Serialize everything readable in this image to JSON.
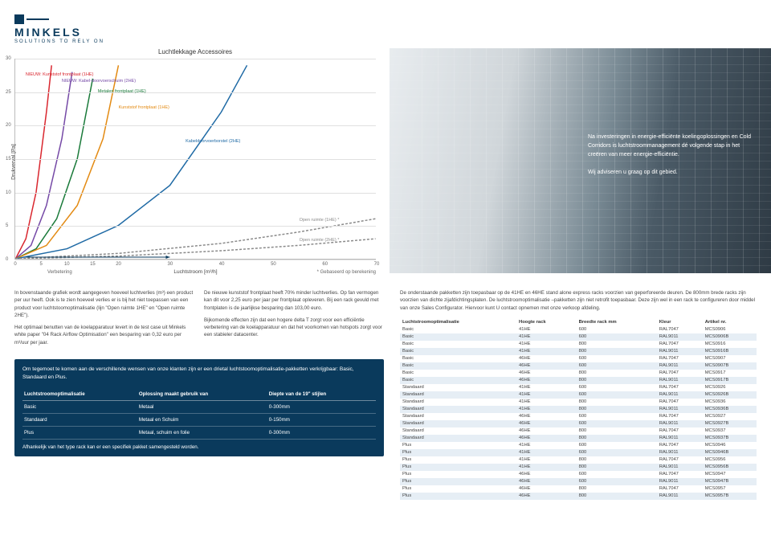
{
  "brand": {
    "name": "MINKELS",
    "tagline": "SOLUTIONS TO RELY ON"
  },
  "chart": {
    "title": "Luchtlekkage Accessoires",
    "y_title": "Drukverval [Pa]",
    "x_title": "Luchtstroom [m³/h]",
    "foot_left": "Verbetering",
    "foot_right": "* Gebaseerd op berekening",
    "xlim": [
      0,
      70
    ],
    "ylim": [
      0,
      30
    ],
    "yticks": [
      0,
      5,
      10,
      15,
      20,
      25,
      30
    ],
    "xticks": [
      0,
      5,
      10,
      15,
      20,
      30,
      40,
      50,
      60,
      70
    ],
    "grid_color": "#e0e0e0",
    "series": [
      {
        "label": "NIEUW: Kunststof frontplaat (1HE)",
        "color": "#d9262e",
        "lx": 2,
        "ly": 28,
        "pts": [
          [
            0,
            0
          ],
          [
            2,
            3
          ],
          [
            4,
            10
          ],
          [
            6,
            22
          ],
          [
            7,
            29
          ]
        ]
      },
      {
        "label": "NIEUW: Kabel-doorvoerschuim (2HE)",
        "color": "#7549a6",
        "lx": 9,
        "ly": 27,
        "pts": [
          [
            0,
            0
          ],
          [
            3,
            2
          ],
          [
            6,
            8
          ],
          [
            9,
            18
          ],
          [
            11,
            28
          ]
        ]
      },
      {
        "label": "Metalen frontplaat (1HE)",
        "color": "#1a7a3a",
        "lx": 16,
        "ly": 25.5,
        "pts": [
          [
            0,
            0
          ],
          [
            4,
            1.5
          ],
          [
            8,
            6
          ],
          [
            12,
            15
          ],
          [
            15,
            27
          ]
        ]
      },
      {
        "label": "Kunststof frontplaat (1HE)",
        "color": "#e38a12",
        "lx": 20,
        "ly": 23,
        "pts": [
          [
            0,
            0
          ],
          [
            6,
            2
          ],
          [
            12,
            8
          ],
          [
            17,
            18
          ],
          [
            20,
            29
          ]
        ]
      },
      {
        "label": "Kabeldoorvoerborstel (2HE)",
        "color": "#1f6aa5",
        "lx": 33,
        "ly": 18,
        "pts": [
          [
            0,
            0
          ],
          [
            10,
            1.5
          ],
          [
            20,
            5
          ],
          [
            30,
            11
          ],
          [
            40,
            22
          ],
          [
            45,
            29
          ]
        ]
      },
      {
        "label": "Open ruimte (1HE) *",
        "color": "#8a8a8a",
        "lx": 55,
        "ly": 6.2,
        "dash": true,
        "pts": [
          [
            0,
            0
          ],
          [
            20,
            0.8
          ],
          [
            40,
            2.3
          ],
          [
            55,
            4
          ],
          [
            70,
            6
          ]
        ]
      },
      {
        "label": "Open ruimte (2HE) *",
        "color": "#8a8a8a",
        "lx": 55,
        "ly": 3.2,
        "dash": true,
        "pts": [
          [
            0,
            0
          ],
          [
            20,
            0.4
          ],
          [
            40,
            1.2
          ],
          [
            55,
            2
          ],
          [
            70,
            3
          ]
        ]
      }
    ],
    "arrow_color": "#0a3a5c"
  },
  "hero": {
    "p1": "Na investeringen in energie-efficiënte koelingoplossingen en Cold Corridors is luchtstroommanagement dé volgende stap in het creëren van meer energie-efficiëntie.",
    "p2": "Wij adviseren u graag op dit gebied."
  },
  "intro": {
    "l1": "In bovenstaande grafiek wordt aangegeven hoeveel luchtverlies (m³) een product per uur heeft. Ook is te zien hoeveel verlies er is bij het niet toepassen van een product voor luchtstoomoptimalisatie (lijn \"Open ruimte 1HE\" en \"Open ruimte 2HE\").",
    "l2": "Het optimaal benutten van de koelapparatuur levert in de test case uit Minkels white paper \"04 Rack Airflow Optimisation\" een besparing van 0,32 euro per m³/uur per jaar.",
    "r1": "De nieuwe kunststof frontplaat heeft 70% minder luchtverlies. Op fan vermogen kan dit voor 2,25 euro per jaar per frontplaat opleveren. Bij een rack gevuld met frontplaten is de jaarlijkse besparing dan 103,00 euro.",
    "r2": "Bijkomende effecten zijn dat een hogere delta T zorgt voor een efficiëntie verbetering van de koelapparatuur en dat het voorkomen van hotspots zorgt voor een stabieler datacenter."
  },
  "pkg": {
    "lead": "Om tegemoet te komen aan de verschillende wensen van onze klanten zijn er een drietal luchtstoomoptimalisatie-pakketten verkrijgbaar: Basic, Standaard en Plus.",
    "cols": [
      "Luchtstroomoptimalisatie",
      "Oplossing maakt gebruik van",
      "Diepte van de 19\" stijlen"
    ],
    "rows": [
      [
        "Basic",
        "Metaal",
        "0-300mm"
      ],
      [
        "Standaard",
        "Metaal en Schuim",
        "0-150mm"
      ],
      [
        "Plus",
        "Metaal, schuim en folie",
        "0-300mm"
      ]
    ],
    "foot": "Afhankelijk van het type rack kan er een specifiek pakket samengesteld worden."
  },
  "right_intro": "De onderstaande pakketten zijn toepasbaar op de 41HE en 46HE stand alone express racks voorzien van geperforeerde deuren. De 800mm brede racks zijn voorzien van dichte zijafdichtingsplaten. De luchtstroomoptimalisatie –pakketten zijn niet retrofit toepasbaar. Deze zijn wel in een rack te configureren door middel van onze Sales Configurator. Hiervoor kunt U contact opnemen met onze verkoop afdeling.",
  "data_table": {
    "cols": [
      "Luchtstroomoptimalisatie",
      "Hoogte rack",
      "Breedte rack mm",
      "Kleur",
      "Artikel nr."
    ],
    "rows": [
      [
        "Basic",
        "41HE",
        "600",
        "RAL7047",
        "MCS0906"
      ],
      [
        "Basic",
        "41HE",
        "600",
        "RAL9011",
        "MCS0906B"
      ],
      [
        "Basic",
        "41HE",
        "800",
        "RAL7047",
        "MCS0916"
      ],
      [
        "Basic",
        "41HE",
        "800",
        "RAL9011",
        "MCS0916B"
      ],
      [
        "Basic",
        "46HE",
        "600",
        "RAL7047",
        "MCS0907"
      ],
      [
        "Basic",
        "46HE",
        "600",
        "RAL9011",
        "MCS0907B"
      ],
      [
        "Basic",
        "46HE",
        "800",
        "RAL7047",
        "MCS0917"
      ],
      [
        "Basic",
        "46HE",
        "800",
        "RAL9011",
        "MCS0917B"
      ],
      [
        "Standaard",
        "41HE",
        "600",
        "RAL7047",
        "MCS0926"
      ],
      [
        "Standaard",
        "41HE",
        "600",
        "RAL9011",
        "MCS0926B"
      ],
      [
        "Standaard",
        "41HE",
        "800",
        "RAL7047",
        "MCS0936"
      ],
      [
        "Standaard",
        "41HE",
        "800",
        "RAL9011",
        "MCS0936B"
      ],
      [
        "Standaard",
        "46HE",
        "600",
        "RAL7047",
        "MCS0927"
      ],
      [
        "Standaard",
        "46HE",
        "600",
        "RAL9011",
        "MCS0927B"
      ],
      [
        "Standaard",
        "46HE",
        "800",
        "RAL7047",
        "MCS0937"
      ],
      [
        "Standaard",
        "46HE",
        "800",
        "RAL9011",
        "MCS0937B"
      ],
      [
        "Plus",
        "41HE",
        "600",
        "RAL7047",
        "MCS0946"
      ],
      [
        "Plus",
        "41HE",
        "600",
        "RAL9011",
        "MCS0946B"
      ],
      [
        "Plus",
        "41HE",
        "800",
        "RAL7047",
        "MCS0956"
      ],
      [
        "Plus",
        "41HE",
        "800",
        "RAL9011",
        "MCS0956B"
      ],
      [
        "Plus",
        "46HE",
        "600",
        "RAL7047",
        "MCS0947"
      ],
      [
        "Plus",
        "46HE",
        "600",
        "RAL9011",
        "MCS0947B"
      ],
      [
        "Plus",
        "46HE",
        "800",
        "RAL7047",
        "MCS0957"
      ],
      [
        "Plus",
        "46HE",
        "800",
        "RAL9011",
        "MCS0957B"
      ]
    ]
  }
}
